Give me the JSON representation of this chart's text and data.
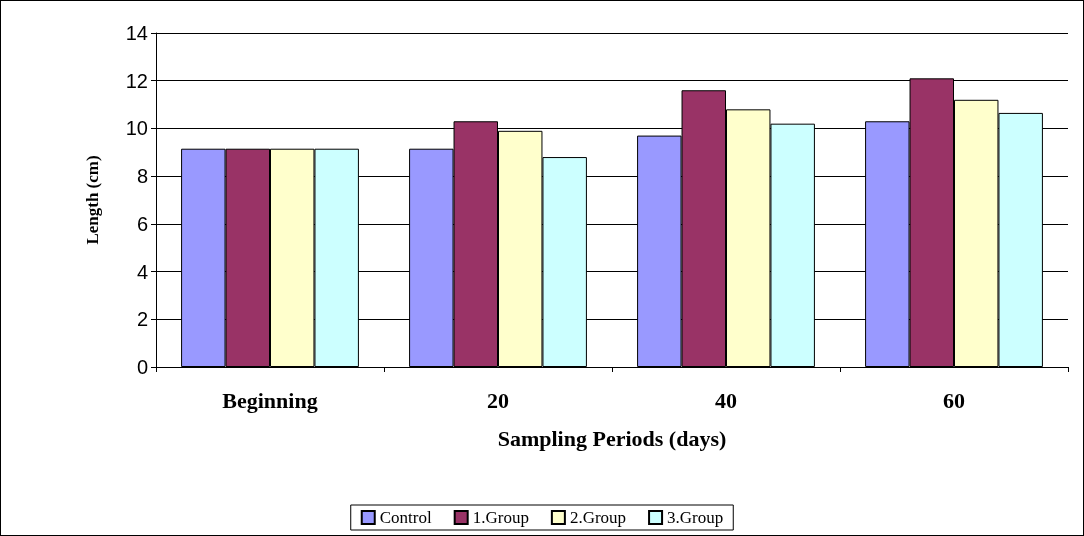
{
  "chart_data": {
    "type": "bar",
    "xlabel": "Sampling Periods (days)",
    "ylabel": "Length (cm)",
    "categories": [
      "Beginning",
      "20",
      "40",
      "60"
    ],
    "series": [
      {
        "name": "Control",
        "color": "#9999ff",
        "values": [
          9.15,
          9.15,
          9.7,
          10.3
        ]
      },
      {
        "name": "1.Group",
        "color": "#993366",
        "values": [
          9.15,
          10.3,
          11.6,
          12.1
        ]
      },
      {
        "name": "2.Group",
        "color": "#ffffcc",
        "values": [
          9.15,
          9.9,
          10.8,
          11.2
        ]
      },
      {
        "name": "3.Group",
        "color": "#ccffff",
        "values": [
          9.15,
          8.8,
          10.2,
          10.65
        ]
      }
    ],
    "ylim": [
      0,
      14
    ],
    "yticks": [
      0,
      2,
      4,
      6,
      8,
      10,
      12,
      14
    ],
    "grid": "y",
    "legend": "bottom"
  }
}
